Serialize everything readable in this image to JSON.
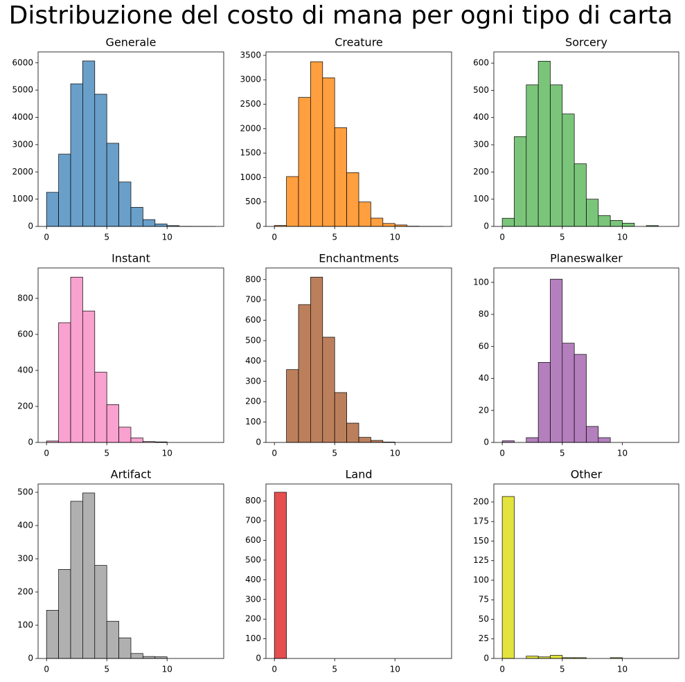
{
  "title": "Distribuzione del costo di mana per ogni tipo di carta",
  "chart_data": [
    {
      "type": "histogram",
      "title": "Generale",
      "color": "#6a9fca",
      "bins": [
        0,
        1,
        2,
        3,
        4,
        5,
        6,
        7,
        8,
        9,
        10,
        11,
        12,
        13,
        14
      ],
      "counts": [
        1250,
        2650,
        5230,
        6070,
        4850,
        3050,
        1630,
        700,
        250,
        90,
        30,
        5,
        3,
        1
      ],
      "xlim": [
        -0.7,
        14.7
      ],
      "xticks": [
        0,
        5,
        10
      ],
      "ylim": [
        0,
        6400
      ],
      "yticks": [
        0,
        1000,
        2000,
        3000,
        4000,
        5000,
        6000
      ]
    },
    {
      "type": "histogram",
      "title": "Creature",
      "color": "#ff9f3f",
      "bins": [
        0,
        1,
        2,
        3,
        4,
        5,
        6,
        7,
        8,
        9,
        10,
        11,
        12,
        13,
        14
      ],
      "counts": [
        20,
        1020,
        2640,
        3370,
        3040,
        2020,
        1100,
        500,
        170,
        60,
        30,
        5,
        2,
        1
      ],
      "xlim": [
        -0.7,
        14.7
      ],
      "xticks": [
        0,
        5,
        10
      ],
      "ylim": [
        0,
        3570
      ],
      "yticks": [
        0,
        500,
        1000,
        1500,
        2000,
        2500,
        3000,
        3500
      ]
    },
    {
      "type": "histogram",
      "title": "Sorcery",
      "color": "#7bc57a",
      "bins": [
        0,
        1,
        2,
        3,
        4,
        5,
        6,
        7,
        8,
        9,
        10,
        11,
        12,
        13,
        14
      ],
      "counts": [
        30,
        330,
        520,
        607,
        520,
        413,
        230,
        100,
        40,
        22,
        12,
        0,
        3,
        0
      ],
      "xlim": [
        -0.7,
        14.7
      ],
      "xticks": [
        0,
        5,
        10
      ],
      "ylim": [
        0,
        641
      ],
      "yticks": [
        0,
        100,
        200,
        300,
        400,
        500,
        600
      ]
    },
    {
      "type": "histogram",
      "title": "Instant",
      "color": "#f9a1cf",
      "bins": [
        0,
        1,
        2,
        3,
        4,
        5,
        6,
        7,
        8,
        9,
        10,
        11,
        12,
        13,
        14
      ],
      "counts": [
        8,
        665,
        918,
        730,
        390,
        210,
        85,
        25,
        5,
        3,
        0,
        0,
        0,
        0
      ],
      "xlim": [
        -0.7,
        14.7
      ],
      "xticks": [
        0,
        5,
        10
      ],
      "ylim": [
        0,
        969
      ],
      "yticks": [
        0,
        200,
        400,
        600,
        800
      ]
    },
    {
      "type": "histogram",
      "title": "Enchantments",
      "color": "#bc7f5c",
      "bins": [
        0,
        1,
        2,
        3,
        4,
        5,
        6,
        7,
        8,
        9,
        10,
        11,
        12,
        13,
        14
      ],
      "counts": [
        0,
        358,
        677,
        812,
        517,
        245,
        95,
        25,
        10,
        2,
        0,
        0,
        0,
        0
      ],
      "xlim": [
        -0.7,
        14.7
      ],
      "xticks": [
        0,
        5,
        10
      ],
      "ylim": [
        0,
        857
      ],
      "yticks": [
        0,
        100,
        200,
        300,
        400,
        500,
        600,
        700,
        800
      ]
    },
    {
      "type": "histogram",
      "title": "Planeswalker",
      "color": "#b47fbd",
      "bins": [
        0,
        1,
        2,
        3,
        4,
        5,
        6,
        7,
        8,
        9,
        10,
        11,
        12,
        13,
        14
      ],
      "counts": [
        1,
        0,
        3,
        50,
        102,
        62,
        55,
        10,
        3,
        0,
        0,
        0,
        0,
        0
      ],
      "xlim": [
        -0.7,
        14.7
      ],
      "xticks": [
        0,
        5,
        10
      ],
      "ylim": [
        0,
        109
      ],
      "yticks": [
        0,
        20,
        40,
        60,
        80,
        100
      ]
    },
    {
      "type": "histogram",
      "title": "Artifact",
      "color": "#b0b0b0",
      "bins": [
        0,
        1,
        2,
        3,
        4,
        5,
        6,
        7,
        8,
        9,
        10,
        11,
        12,
        13,
        14
      ],
      "counts": [
        145,
        268,
        473,
        498,
        280,
        112,
        62,
        15,
        6,
        5,
        0,
        0,
        0,
        0
      ],
      "xlim": [
        -0.7,
        14.7
      ],
      "xticks": [
        0,
        5,
        10
      ],
      "ylim": [
        0,
        525
      ],
      "yticks": [
        0,
        100,
        200,
        300,
        400,
        500
      ]
    },
    {
      "type": "histogram",
      "title": "Land",
      "color": "#e54f50",
      "bins": [
        0,
        1,
        2,
        3,
        4,
        5,
        6,
        7,
        8,
        9,
        10,
        11,
        12,
        13,
        14
      ],
      "counts": [
        845,
        0,
        0,
        0,
        0,
        0,
        0,
        0,
        0,
        0,
        0,
        0,
        0,
        0
      ],
      "xlim": [
        -0.7,
        14.7
      ],
      "xticks": [
        0,
        5,
        10
      ],
      "ylim": [
        0,
        887
      ],
      "yticks": [
        0,
        100,
        200,
        300,
        400,
        500,
        600,
        700,
        800
      ]
    },
    {
      "type": "histogram",
      "title": "Other",
      "color": "#e3e33e",
      "bins": [
        0,
        1,
        2,
        3,
        4,
        5,
        6,
        7,
        8,
        9,
        10,
        11,
        12,
        13,
        14
      ],
      "counts": [
        207,
        0,
        3,
        2,
        4,
        1,
        1,
        0,
        0,
        1,
        0,
        0,
        0,
        0
      ],
      "xlim": [
        -0.7,
        14.7
      ],
      "xticks": [
        0,
        5,
        10
      ],
      "ylim": [
        0,
        223
      ],
      "yticks": [
        0,
        25,
        50,
        75,
        100,
        125,
        150,
        175,
        200
      ]
    }
  ]
}
